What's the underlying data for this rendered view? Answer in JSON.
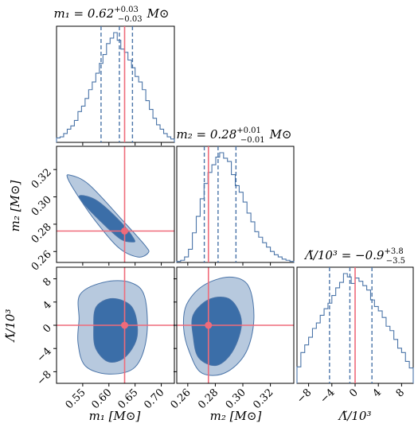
{
  "chart_data": {
    "type": "corner",
    "colors": {
      "line": "#4a74a8",
      "truth": "#ef6b7a",
      "outer": "#b7c9de",
      "inner": "#3b6ea8"
    },
    "params": [
      {
        "key": "m1",
        "title_main": "m₁ = 0.62",
        "title_up": "+0.03",
        "title_low": "−0.03",
        "title_unit": "M⊙",
        "xlabel": "m₁ [M⊙]",
        "ylabel": "",
        "range": [
          0.5,
          0.725
        ],
        "ticks": [
          0.55,
          0.6,
          0.65,
          0.7
        ],
        "tick_labels": [
          "0.55",
          "0.60",
          "0.65",
          "0.70"
        ],
        "median": 0.62,
        "lo": 0.585,
        "hi": 0.645,
        "truth": 0.63,
        "hist": [
          0.04,
          0.05,
          0.08,
          0.12,
          0.15,
          0.2,
          0.28,
          0.33,
          0.4,
          0.48,
          0.55,
          0.63,
          0.72,
          0.8,
          0.9,
          0.95,
          1.0,
          0.93,
          0.85,
          0.82,
          0.75,
          0.68,
          0.6,
          0.55,
          0.48,
          0.38,
          0.3,
          0.22,
          0.16,
          0.12,
          0.08,
          0.05,
          0.03
        ]
      },
      {
        "key": "m2",
        "title_main": "m₂ = 0.28",
        "title_up": "+0.01",
        "title_low": "−0.01",
        "title_unit": "M⊙",
        "xlabel": "m₂ [M⊙]",
        "ylabel": "m₂ [M⊙]",
        "range": [
          0.252,
          0.337
        ],
        "ticks": [
          0.26,
          0.28,
          0.3,
          0.32
        ],
        "tick_labels": [
          "0.26",
          "0.28",
          "0.30",
          "0.32"
        ],
        "median": 0.282,
        "lo": 0.272,
        "hi": 0.295,
        "truth": 0.275,
        "hist": [
          0.01,
          0.02,
          0.05,
          0.12,
          0.27,
          0.42,
          0.58,
          0.72,
          0.82,
          0.89,
          0.96,
          1.0,
          0.95,
          0.92,
          0.8,
          0.7,
          0.64,
          0.55,
          0.45,
          0.37,
          0.28,
          0.23,
          0.18,
          0.14,
          0.1,
          0.07,
          0.05,
          0.03,
          0.02,
          0.01
        ]
      },
      {
        "key": "lambda",
        "title_main": "Λ̃/10³ = −0.9",
        "title_up": "+3.8",
        "title_low": "−3.5",
        "title_unit": "",
        "xlabel": "Λ̃/10³",
        "ylabel": "Λ̃/10³",
        "range": [
          -10,
          10
        ],
        "ticks": [
          -8,
          -4,
          0,
          4,
          8
        ],
        "tick_labels": [
          "−8",
          "−4",
          "0",
          "4",
          "8"
        ],
        "median": -0.9,
        "lo": -4.4,
        "hi": 2.9,
        "truth": 0.0,
        "hist": [
          0.15,
          0.28,
          0.35,
          0.42,
          0.5,
          0.55,
          0.62,
          0.68,
          0.73,
          0.8,
          0.87,
          0.92,
          1.0,
          0.97,
          0.91,
          0.96,
          0.93,
          0.89,
          0.85,
          0.76,
          0.7,
          0.66,
          0.6,
          0.52,
          0.48,
          0.4,
          0.32,
          0.28,
          0.2,
          0.14
        ]
      }
    ],
    "joint_2d": [
      {
        "x": "m1",
        "y": "m2",
        "center": [
          0.62,
          0.28
        ],
        "outer": [
          [
            0.525,
            0.316
          ],
          [
            0.562,
            0.309
          ],
          [
            0.628,
            0.282
          ],
          [
            0.67,
            0.264
          ],
          [
            0.675,
            0.259
          ],
          [
            0.655,
            0.256
          ],
          [
            0.618,
            0.263
          ],
          [
            0.575,
            0.282
          ],
          [
            0.542,
            0.3
          ],
          [
            0.522,
            0.313
          ]
        ],
        "inner": [
          [
            0.545,
            0.301
          ],
          [
            0.578,
            0.297
          ],
          [
            0.624,
            0.281
          ],
          [
            0.648,
            0.269
          ],
          [
            0.645,
            0.267
          ],
          [
            0.623,
            0.269
          ],
          [
            0.59,
            0.28
          ],
          [
            0.552,
            0.295
          ]
        ]
      },
      {
        "x": "m1",
        "y": "lambda",
        "center": [
          0.62,
          0.0
        ],
        "outer": [
          [
            0.545,
            5.3
          ],
          [
            0.59,
            7.4
          ],
          [
            0.64,
            7.4
          ],
          [
            0.668,
            5.0
          ],
          [
            0.672,
            -2.0
          ],
          [
            0.65,
            -7.2
          ],
          [
            0.6,
            -8.4
          ],
          [
            0.555,
            -7.0
          ],
          [
            0.541,
            -3.0
          ],
          [
            0.543,
            1.0
          ]
        ],
        "inner": [
          [
            0.576,
            3.2
          ],
          [
            0.608,
            4.6
          ],
          [
            0.645,
            3.0
          ],
          [
            0.654,
            -1.8
          ],
          [
            0.632,
            -5.4
          ],
          [
            0.6,
            -6.3
          ],
          [
            0.575,
            -4.0
          ],
          [
            0.571,
            -0.5
          ]
        ]
      },
      {
        "x": "m2",
        "y": "lambda",
        "center": [
          0.28,
          0.0
        ],
        "outer": [
          [
            0.259,
            3.5
          ],
          [
            0.271,
            6.8
          ],
          [
            0.29,
            8.3
          ],
          [
            0.304,
            6.8
          ],
          [
            0.308,
            1.0
          ],
          [
            0.302,
            -4.8
          ],
          [
            0.287,
            -8.2
          ],
          [
            0.27,
            -8.2
          ],
          [
            0.261,
            -4.5
          ],
          [
            0.257,
            -0.5
          ]
        ],
        "inner": [
          [
            0.264,
            1.8
          ],
          [
            0.276,
            4.5
          ],
          [
            0.291,
            4.4
          ],
          [
            0.299,
            0.6
          ],
          [
            0.293,
            -4.3
          ],
          [
            0.281,
            -6.9
          ],
          [
            0.268,
            -5.6
          ],
          [
            0.264,
            -2.0
          ]
        ]
      }
    ]
  }
}
